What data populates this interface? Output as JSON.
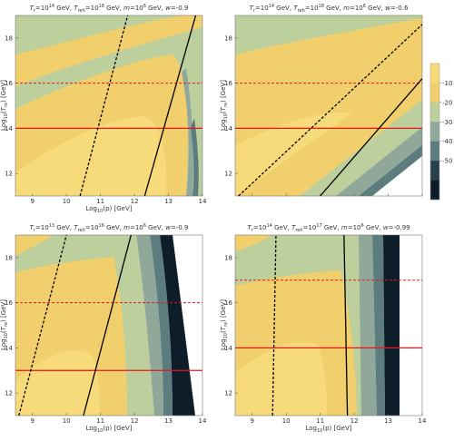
{
  "chart_data": [
    {
      "type": "contour",
      "title": "T_r=10^14 GeV, T_reh=10^18 GeV, m=10^6 GeV, w=-0.9",
      "xlabel": "Log10(p) [GeV]",
      "ylabel": "Log10(T_re) [GeV]",
      "xlim": [
        8.5,
        14
      ],
      "ylim": [
        11,
        19
      ],
      "xticks": [
        "9",
        "10",
        "11",
        "12",
        "13",
        "14"
      ],
      "yticks": [
        "12",
        "14",
        "16",
        "18"
      ],
      "title_parts": {
        "tr": "14",
        "treh": "18",
        "m": "6",
        "w": "-0.9"
      },
      "hlines_solid": [
        14
      ],
      "hlines_dashed": [
        16
      ],
      "line_solid": [
        [
          12.3,
          11
        ],
        [
          13.8,
          19
        ]
      ],
      "line_dashed": [
        [
          10.4,
          11
        ],
        [
          11.8,
          19
        ]
      ]
    },
    {
      "type": "contour",
      "title": "T_r=10^14 GeV, T_reh=10^18 GeV, m=10^6 GeV, w=-0.6",
      "xlabel": "Log10(p) [GeV]",
      "ylabel": "Log10(T_re) [GeV]",
      "xlim": [
        8.5,
        14
      ],
      "ylim": [
        11,
        19
      ],
      "xticks": [
        "9",
        "10",
        "11",
        "12",
        "13",
        "14"
      ],
      "yticks": [
        "12",
        "14",
        "16",
        "18"
      ],
      "title_parts": {
        "tr": "14",
        "treh": "18",
        "m": "6",
        "w": "-0.6"
      },
      "hlines_solid": [
        14
      ],
      "hlines_dashed": [
        16
      ],
      "line_solid": [
        [
          11.0,
          11
        ],
        [
          14,
          16.2
        ]
      ],
      "line_dashed": [
        [
          8.6,
          11
        ],
        [
          14,
          18.6
        ]
      ]
    },
    {
      "type": "contour",
      "title": "T_r=10^13 GeV, T_reh=10^16 GeV, m=10^6 GeV, w=-0.9",
      "xlabel": "Log10(p) [GeV]",
      "ylabel": "Log10(T_re) [GeV]",
      "xlim": [
        8.5,
        14
      ],
      "ylim": [
        11,
        19
      ],
      "xticks": [
        "9",
        "10",
        "11",
        "12",
        "13",
        "14"
      ],
      "yticks": [
        "12",
        "14",
        "16",
        "18"
      ],
      "title_parts": {
        "tr": "13",
        "treh": "16",
        "m": "6",
        "w": "-0.9"
      },
      "hlines_solid": [
        13
      ],
      "hlines_dashed": [
        16
      ],
      "line_solid": [
        [
          10.5,
          11
        ],
        [
          11.9,
          19
        ]
      ],
      "line_dashed": [
        [
          8.6,
          11
        ],
        [
          10.0,
          19
        ]
      ]
    },
    {
      "type": "contour",
      "title": "T_r=10^14 GeV, T_reh=10^17 GeV, m=10^6 GeV, w=-0.99",
      "xlabel": "Log10(p) [GeV]",
      "ylabel": "Log10(T_re) [GeV]",
      "xlim": [
        8.5,
        14
      ],
      "ylim": [
        11,
        19
      ],
      "xticks": [
        "9",
        "10",
        "11",
        "12",
        "13",
        "14"
      ],
      "yticks": [
        "12",
        "14",
        "16",
        "18"
      ],
      "title_parts": {
        "tr": "14",
        "treh": "17",
        "m": "6",
        "w": "-0.99"
      },
      "hlines_solid": [
        14
      ],
      "hlines_dashed": [
        17
      ],
      "line_solid": [
        [
          11.8,
          11
        ],
        [
          11.7,
          19
        ]
      ],
      "line_dashed": [
        [
          9.6,
          11
        ],
        [
          9.7,
          19
        ]
      ]
    }
  ],
  "colorbar": {
    "ticks": [
      "-10",
      "-20",
      "-30",
      "-40",
      "-50"
    ],
    "colors": [
      "#f7da7a",
      "#f1cf6c",
      "#bccf9d",
      "#8fa89a",
      "#5c7c7e",
      "#27404b",
      "#0e1d2a"
    ]
  }
}
